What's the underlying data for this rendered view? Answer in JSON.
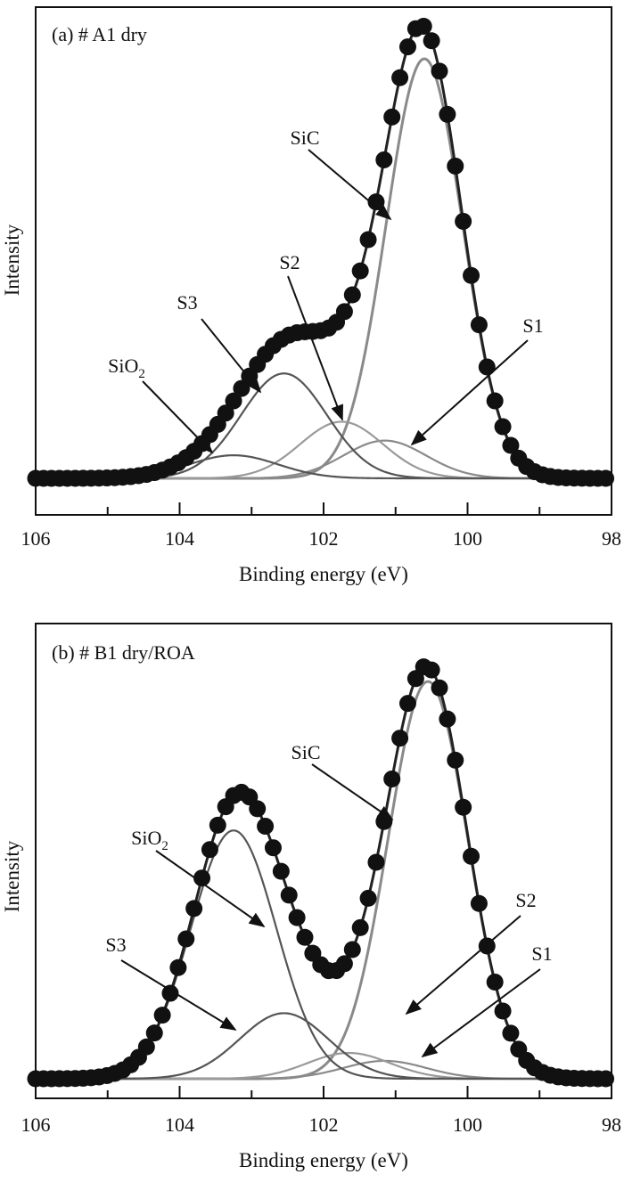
{
  "colors": {
    "frame": "#111111",
    "data_points": "#111111",
    "envelope": "#222222",
    "sic": "#8a8a8a",
    "sio2": "#555555",
    "s3": "#555555",
    "s2": "#9a9a9a",
    "s1": "#8a8a8a"
  },
  "chart_data": [
    {
      "type": "scatter",
      "title": "(a) # A1 dry",
      "xlabel": "Binding energy (eV)",
      "ylabel": "Intensity",
      "xlim": [
        106,
        98
      ],
      "x_reversed": true,
      "ylim": [
        0,
        1.08
      ],
      "grid": false,
      "xticks": [
        106,
        104,
        102,
        100,
        98
      ],
      "xtick_labels": [
        "106",
        "104",
        "102",
        "100",
        "98"
      ],
      "components": [
        {
          "name": "SiC",
          "center": 100.6,
          "fwhm": 1.25,
          "height": 1.0
        },
        {
          "name": "S1",
          "center": 101.15,
          "fwhm": 1.35,
          "height": 0.09
        },
        {
          "name": "S2",
          "center": 101.75,
          "fwhm": 1.35,
          "height": 0.135
        },
        {
          "name": "S3",
          "center": 102.55,
          "fwhm": 1.4,
          "height": 0.25
        },
        {
          "name": "SiO₂",
          "center": 103.25,
          "fwhm": 1.45,
          "height": 0.055
        }
      ],
      "annotations": [
        {
          "text": "SiC",
          "target_x": 101.05,
          "component": "envelope"
        },
        {
          "text": "S2",
          "target_x": 101.75,
          "component": "S2"
        },
        {
          "text": "S3",
          "target_x": 102.55,
          "component": "S3"
        },
        {
          "text": "SiO₂",
          "target_x": 103.25,
          "component": "SiO₂"
        },
        {
          "text": "S1",
          "target_x": 101.15,
          "component": "S1"
        }
      ],
      "point_step": 0.11
    },
    {
      "type": "scatter",
      "title": "(b) # B1 dry/ROA",
      "xlabel": "Binding energy (eV)",
      "ylabel": "Intensity",
      "xlim": [
        106,
        98
      ],
      "x_reversed": true,
      "ylim": [
        0,
        1.08
      ],
      "grid": false,
      "xticks": [
        106,
        104,
        102,
        100,
        98
      ],
      "xtick_labels": [
        "106",
        "104",
        "102",
        "100",
        "98"
      ],
      "components": [
        {
          "name": "SiC",
          "center": 100.55,
          "fwhm": 1.3,
          "height": 1.0
        },
        {
          "name": "S1",
          "center": 101.15,
          "fwhm": 1.35,
          "height": 0.045
        },
        {
          "name": "S2",
          "center": 101.65,
          "fwhm": 1.35,
          "height": 0.065
        },
        {
          "name": "S3",
          "center": 102.55,
          "fwhm": 1.45,
          "height": 0.165
        },
        {
          "name": "SiO₂",
          "center": 103.25,
          "fwhm": 1.4,
          "height": 0.625
        }
      ],
      "annotations": [
        {
          "text": "SiC",
          "target_x": 101.05,
          "component": "envelope"
        },
        {
          "text": "SiO₂",
          "target_x": 102.85,
          "component": "SiO₂"
        },
        {
          "text": "S2",
          "target_x": 101.65,
          "component": "S2"
        },
        {
          "text": "S3",
          "target_x": 103.15,
          "component": "S3"
        },
        {
          "text": "S1",
          "target_x": 100.85,
          "component": "S1"
        }
      ],
      "point_step": 0.11
    }
  ]
}
